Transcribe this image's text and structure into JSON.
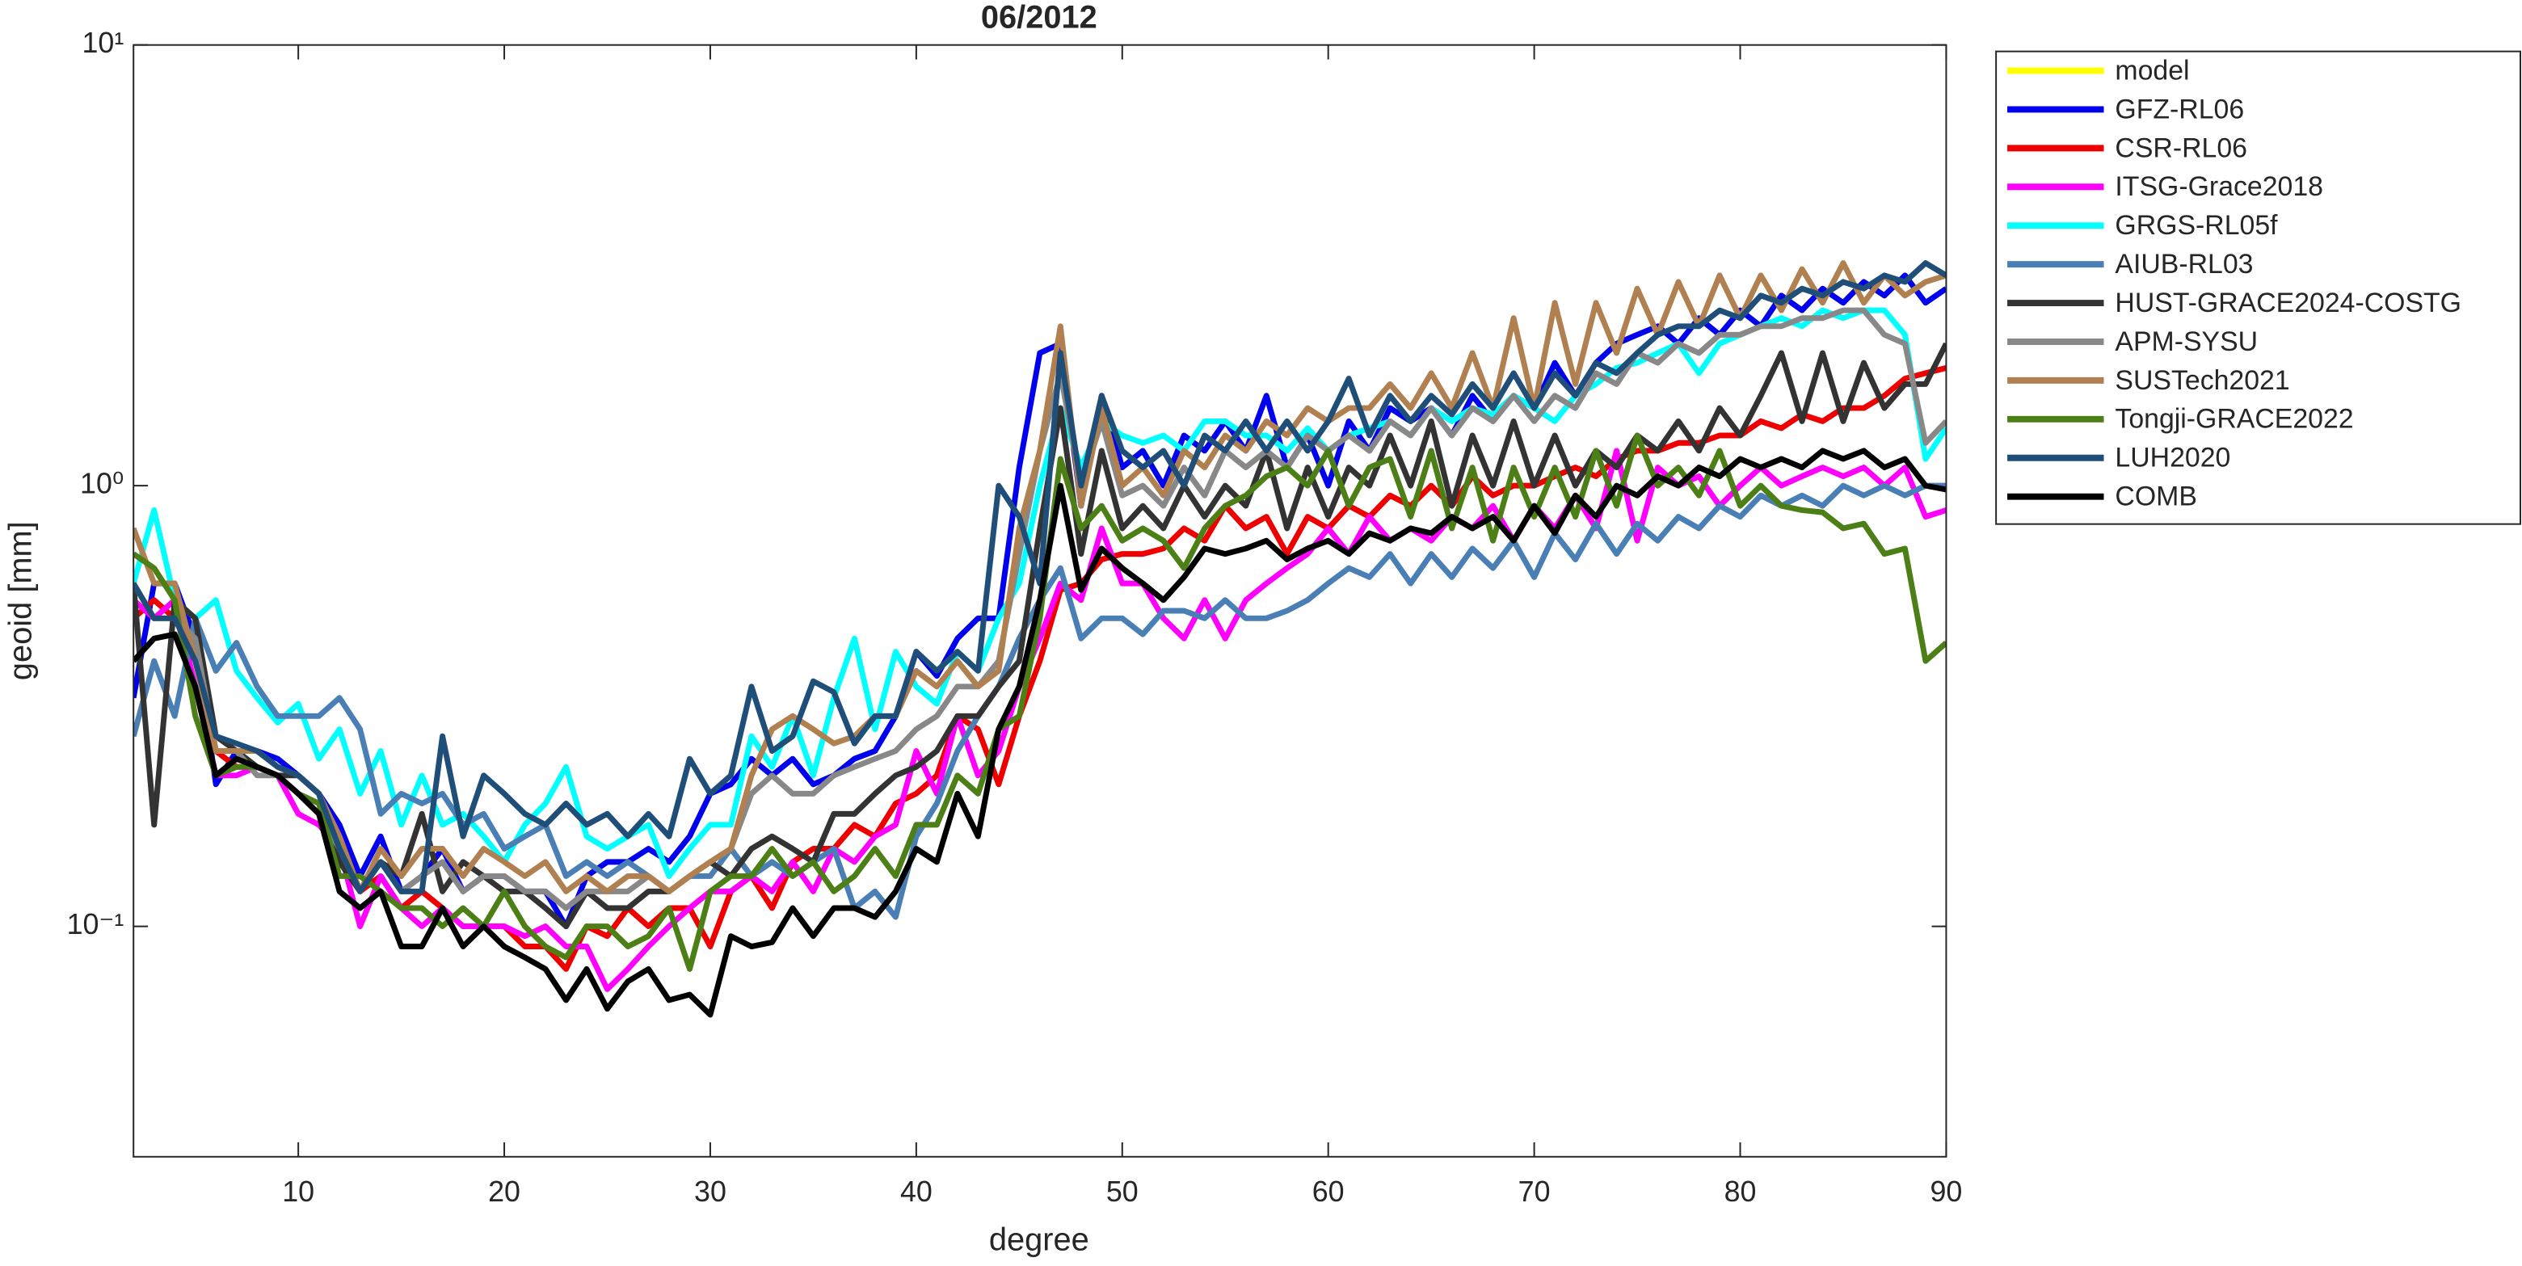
{
  "chart_data": {
    "type": "line",
    "title": "06/2012",
    "xlabel": "degree",
    "ylabel": "geoid [mm]",
    "xlim": [
      2,
      90
    ],
    "xticks": [
      10,
      20,
      30,
      40,
      50,
      60,
      70,
      80,
      90
    ],
    "ylim": [
      0.03,
      10
    ],
    "yscale": "log",
    "yticks": [
      {
        "value": 0.1,
        "label": "10⁻¹"
      },
      {
        "value": 1,
        "label": "10⁰"
      },
      {
        "value": 10,
        "label": "10¹"
      }
    ],
    "legend": "outside-right",
    "x": [
      2,
      3,
      4,
      5,
      6,
      7,
      8,
      9,
      10,
      11,
      12,
      13,
      14,
      15,
      16,
      17,
      18,
      19,
      20,
      21,
      22,
      23,
      24,
      25,
      26,
      27,
      28,
      29,
      30,
      31,
      32,
      33,
      34,
      35,
      36,
      37,
      38,
      39,
      40,
      41,
      42,
      43,
      44,
      45,
      46,
      47,
      48,
      49,
      50,
      51,
      52,
      53,
      54,
      55,
      56,
      57,
      58,
      59,
      60,
      61,
      62,
      63,
      64,
      65,
      66,
      67,
      68,
      69,
      70,
      71,
      72,
      73,
      74,
      75,
      76,
      77,
      78,
      79,
      80,
      81,
      82,
      83,
      84,
      85,
      86,
      87,
      88,
      89,
      90
    ],
    "series": [
      {
        "name": "model",
        "color": "#ffff00",
        "values": [
          null,
          null,
          null,
          null,
          null,
          null,
          null,
          null,
          null,
          null,
          null,
          null,
          null,
          null,
          null,
          null,
          null,
          null,
          null,
          null,
          null,
          null,
          null,
          null,
          null,
          null,
          null,
          null,
          null,
          null,
          null,
          null,
          null,
          null,
          null,
          null,
          null,
          null,
          null,
          null,
          null,
          null,
          null,
          null,
          null,
          null,
          null,
          null,
          null,
          null,
          null,
          null,
          null,
          null,
          null,
          null,
          null,
          null,
          null,
          null,
          null,
          null,
          null,
          null,
          null,
          null,
          null,
          null,
          null,
          null,
          null,
          null,
          null,
          null,
          null,
          null,
          null,
          null,
          null,
          null,
          null,
          null,
          null,
          null,
          null,
          null,
          null,
          null,
          null
        ]
      },
      {
        "name": "GFZ-RL06",
        "color": "#0000ee",
        "values": [
          0.33,
          0.6,
          0.6,
          0.45,
          0.21,
          0.25,
          0.25,
          0.24,
          0.22,
          0.2,
          0.17,
          0.13,
          0.16,
          0.12,
          0.13,
          0.15,
          0.12,
          0.13,
          0.13,
          0.12,
          0.12,
          0.1,
          0.13,
          0.14,
          0.14,
          0.15,
          0.14,
          0.16,
          0.2,
          0.21,
          0.24,
          0.22,
          0.24,
          0.21,
          0.22,
          0.24,
          0.25,
          0.3,
          0.42,
          0.37,
          0.45,
          0.5,
          0.5,
          1.1,
          2.0,
          2.1,
          0.9,
          1.6,
          1.1,
          1.2,
          1.0,
          1.3,
          1.2,
          1.4,
          1.2,
          1.6,
          1.1,
          1.3,
          1.0,
          1.4,
          1.2,
          1.5,
          1.4,
          1.5,
          1.3,
          1.6,
          1.4,
          1.6,
          1.5,
          1.9,
          1.6,
          1.9,
          2.1,
          2.2,
          2.3,
          2.1,
          2.4,
          2.2,
          2.5,
          2.3,
          2.7,
          2.5,
          2.8,
          2.6,
          2.9,
          2.7,
          3.0,
          2.6,
          2.8
        ]
      },
      {
        "name": "CSR-RL06",
        "color": "#ee0000",
        "values": [
          0.5,
          0.55,
          0.5,
          0.45,
          0.25,
          0.23,
          0.23,
          0.22,
          0.2,
          0.18,
          0.16,
          0.12,
          0.13,
          0.11,
          0.12,
          0.11,
          0.1,
          0.1,
          0.1,
          0.09,
          0.09,
          0.08,
          0.1,
          0.095,
          0.11,
          0.1,
          0.11,
          0.11,
          0.09,
          0.12,
          0.13,
          0.11,
          0.14,
          0.15,
          0.15,
          0.17,
          0.16,
          0.19,
          0.2,
          0.22,
          0.3,
          0.28,
          0.21,
          0.3,
          0.4,
          0.58,
          0.6,
          0.68,
          0.7,
          0.7,
          0.72,
          0.8,
          0.75,
          0.9,
          0.8,
          0.85,
          0.7,
          0.85,
          0.8,
          0.9,
          0.85,
          0.95,
          0.9,
          1.0,
          0.9,
          1.05,
          0.95,
          1.0,
          1.0,
          1.05,
          1.1,
          1.05,
          1.15,
          1.2,
          1.2,
          1.25,
          1.25,
          1.3,
          1.3,
          1.4,
          1.35,
          1.45,
          1.4,
          1.5,
          1.5,
          1.6,
          1.75,
          1.8,
          1.85
        ]
      },
      {
        "name": "ITSG-Grace2018",
        "color": "#ff00ff",
        "values": [
          0.55,
          0.5,
          0.55,
          0.35,
          0.22,
          0.22,
          0.23,
          0.22,
          0.18,
          0.17,
          0.15,
          0.1,
          0.13,
          0.11,
          0.1,
          0.11,
          0.1,
          0.1,
          0.1,
          0.095,
          0.1,
          0.09,
          0.09,
          0.072,
          0.08,
          0.09,
          0.1,
          0.11,
          0.12,
          0.12,
          0.13,
          0.12,
          0.14,
          0.12,
          0.15,
          0.14,
          0.16,
          0.17,
          0.25,
          0.2,
          0.3,
          0.22,
          0.25,
          0.35,
          0.45,
          0.6,
          0.55,
          0.8,
          0.6,
          0.6,
          0.5,
          0.45,
          0.55,
          0.45,
          0.55,
          0.6,
          0.65,
          0.7,
          0.8,
          0.7,
          0.85,
          0.75,
          0.8,
          0.75,
          0.85,
          0.8,
          0.9,
          0.75,
          0.9,
          0.8,
          0.95,
          0.8,
          1.2,
          0.75,
          1.1,
          1.0,
          1.05,
          0.9,
          1.0,
          1.1,
          1.0,
          1.05,
          1.1,
          1.05,
          1.1,
          1.0,
          1.1,
          0.85,
          0.88
        ]
      },
      {
        "name": "GRGS-RL05f",
        "color": "#00ffff",
        "values": [
          0.6,
          0.88,
          0.55,
          0.5,
          0.55,
          0.38,
          0.33,
          0.29,
          0.32,
          0.24,
          0.28,
          0.2,
          0.25,
          0.17,
          0.22,
          0.17,
          0.18,
          0.16,
          0.14,
          0.17,
          0.19,
          0.23,
          0.16,
          0.15,
          0.16,
          0.17,
          0.13,
          0.15,
          0.17,
          0.17,
          0.27,
          0.23,
          0.3,
          0.22,
          0.33,
          0.45,
          0.28,
          0.42,
          0.35,
          0.32,
          0.42,
          0.38,
          0.5,
          0.6,
          1.0,
          1.5,
          1.1,
          1.4,
          1.3,
          1.25,
          1.3,
          1.2,
          1.4,
          1.4,
          1.3,
          1.3,
          1.2,
          1.35,
          1.2,
          1.3,
          1.35,
          1.4,
          1.3,
          1.5,
          1.4,
          1.5,
          1.45,
          1.6,
          1.5,
          1.4,
          1.6,
          1.7,
          1.85,
          1.9,
          2.0,
          2.1,
          1.8,
          2.1,
          2.2,
          2.3,
          2.4,
          2.3,
          2.5,
          2.4,
          2.5,
          2.5,
          2.2,
          1.15,
          1.35
        ]
      },
      {
        "name": "AIUB-RL03",
        "color": "#4a7fb5",
        "values": [
          0.27,
          0.4,
          0.3,
          0.5,
          0.38,
          0.44,
          0.35,
          0.3,
          0.3,
          0.3,
          0.33,
          0.28,
          0.18,
          0.2,
          0.19,
          0.2,
          0.17,
          0.18,
          0.15,
          0.16,
          0.17,
          0.13,
          0.14,
          0.13,
          0.14,
          0.13,
          0.12,
          0.13,
          0.13,
          0.15,
          0.13,
          0.14,
          0.13,
          0.14,
          0.15,
          0.11,
          0.12,
          0.105,
          0.16,
          0.19,
          0.25,
          0.3,
          0.35,
          0.45,
          0.55,
          0.65,
          0.45,
          0.5,
          0.5,
          0.46,
          0.52,
          0.52,
          0.5,
          0.55,
          0.5,
          0.5,
          0.52,
          0.55,
          0.6,
          0.65,
          0.62,
          0.7,
          0.6,
          0.7,
          0.62,
          0.72,
          0.65,
          0.75,
          0.62,
          0.78,
          0.68,
          0.82,
          0.7,
          0.82,
          0.75,
          0.85,
          0.8,
          0.9,
          0.85,
          0.95,
          0.9,
          0.95,
          0.9,
          1.0,
          0.95,
          1.0,
          0.95,
          1.0,
          1.0
        ]
      },
      {
        "name": "HUST-GRACE2024-COSTG",
        "color": "#333333",
        "values": [
          0.6,
          0.17,
          0.55,
          0.5,
          0.27,
          0.25,
          0.23,
          0.22,
          0.22,
          0.2,
          0.14,
          0.12,
          0.14,
          0.13,
          0.18,
          0.12,
          0.14,
          0.13,
          0.12,
          0.12,
          0.11,
          0.1,
          0.12,
          0.11,
          0.11,
          0.12,
          0.12,
          0.13,
          0.14,
          0.13,
          0.15,
          0.16,
          0.15,
          0.14,
          0.18,
          0.18,
          0.2,
          0.22,
          0.23,
          0.25,
          0.3,
          0.3,
          0.35,
          0.4,
          0.8,
          1.5,
          0.7,
          1.2,
          0.8,
          0.9,
          0.8,
          1.0,
          0.85,
          1.0,
          0.9,
          1.2,
          0.8,
          1.1,
          0.85,
          1.1,
          1.0,
          1.3,
          1.0,
          1.4,
          0.9,
          1.3,
          1.0,
          1.4,
          1.0,
          1.3,
          1.0,
          1.2,
          1.1,
          1.3,
          1.2,
          1.4,
          1.2,
          1.5,
          1.3,
          1.6,
          2.0,
          1.4,
          2.0,
          1.4,
          1.9,
          1.5,
          1.7,
          1.7,
          2.1
        ]
      },
      {
        "name": "APM-SYSU",
        "color": "#888888",
        "values": [
          0.6,
          0.5,
          0.5,
          0.45,
          0.25,
          0.25,
          0.22,
          0.22,
          0.2,
          0.18,
          0.15,
          0.12,
          0.14,
          0.12,
          0.13,
          0.14,
          0.12,
          0.13,
          0.13,
          0.12,
          0.12,
          0.11,
          0.12,
          0.12,
          0.12,
          0.13,
          0.12,
          0.13,
          0.14,
          0.15,
          0.2,
          0.22,
          0.2,
          0.2,
          0.22,
          0.23,
          0.24,
          0.25,
          0.28,
          0.3,
          0.35,
          0.35,
          0.4,
          0.7,
          1.2,
          1.8,
          1.0,
          1.4,
          0.95,
          1.0,
          0.9,
          1.1,
          0.95,
          1.2,
          1.1,
          1.2,
          1.1,
          1.3,
          1.2,
          1.3,
          1.2,
          1.4,
          1.3,
          1.5,
          1.3,
          1.5,
          1.4,
          1.6,
          1.4,
          1.6,
          1.5,
          1.8,
          1.7,
          2.0,
          1.9,
          2.1,
          2.0,
          2.2,
          2.2,
          2.3,
          2.3,
          2.4,
          2.4,
          2.5,
          2.5,
          2.2,
          2.1,
          1.25,
          1.4
        ]
      },
      {
        "name": "SUSTech2021",
        "color": "#b08050",
        "values": [
          0.8,
          0.6,
          0.6,
          0.4,
          0.25,
          0.25,
          0.25,
          0.23,
          0.22,
          0.2,
          0.16,
          0.12,
          0.15,
          0.13,
          0.15,
          0.15,
          0.13,
          0.15,
          0.14,
          0.13,
          0.14,
          0.12,
          0.13,
          0.12,
          0.13,
          0.13,
          0.12,
          0.13,
          0.14,
          0.15,
          0.22,
          0.28,
          0.3,
          0.28,
          0.26,
          0.27,
          0.3,
          0.3,
          0.38,
          0.35,
          0.4,
          0.35,
          0.38,
          0.8,
          1.2,
          2.3,
          0.9,
          1.5,
          1.0,
          1.1,
          0.95,
          1.2,
          1.1,
          1.3,
          1.2,
          1.4,
          1.3,
          1.5,
          1.4,
          1.5,
          1.5,
          1.7,
          1.5,
          1.8,
          1.5,
          2.0,
          1.5,
          2.4,
          1.5,
          2.6,
          1.7,
          2.6,
          2.0,
          2.8,
          2.2,
          2.9,
          2.3,
          3.0,
          2.4,
          3.0,
          2.5,
          3.1,
          2.6,
          3.2,
          2.6,
          3.0,
          2.7,
          2.9,
          3.0
        ]
      },
      {
        "name": "Tongji-GRACE2022",
        "color": "#4d7f17",
        "values": [
          0.7,
          0.65,
          0.55,
          0.3,
          0.22,
          0.23,
          0.23,
          0.22,
          0.2,
          0.19,
          0.13,
          0.13,
          0.12,
          0.11,
          0.11,
          0.1,
          0.11,
          0.1,
          0.12,
          0.1,
          0.09,
          0.085,
          0.1,
          0.1,
          0.09,
          0.095,
          0.11,
          0.08,
          0.12,
          0.13,
          0.13,
          0.15,
          0.13,
          0.14,
          0.12,
          0.13,
          0.15,
          0.13,
          0.17,
          0.17,
          0.22,
          0.2,
          0.28,
          0.3,
          0.5,
          1.15,
          0.8,
          0.9,
          0.75,
          0.8,
          0.75,
          0.65,
          0.8,
          0.9,
          0.95,
          1.05,
          1.1,
          1.0,
          1.2,
          0.9,
          1.1,
          1.15,
          0.85,
          1.2,
          0.8,
          1.1,
          0.75,
          1.1,
          0.85,
          1.1,
          0.85,
          1.2,
          0.9,
          1.3,
          1.0,
          1.1,
          0.95,
          1.2,
          0.9,
          1.0,
          0.9,
          0.88,
          0.87,
          0.8,
          0.82,
          0.7,
          0.72,
          0.4,
          0.44
        ]
      },
      {
        "name": "LUH2020",
        "color": "#1f4e79",
        "values": [
          0.6,
          0.5,
          0.5,
          0.4,
          0.27,
          0.26,
          0.25,
          0.23,
          0.22,
          0.2,
          0.15,
          0.12,
          0.14,
          0.12,
          0.12,
          0.27,
          0.16,
          0.22,
          0.2,
          0.18,
          0.17,
          0.19,
          0.17,
          0.18,
          0.16,
          0.18,
          0.16,
          0.24,
          0.2,
          0.22,
          0.35,
          0.25,
          0.27,
          0.36,
          0.34,
          0.26,
          0.3,
          0.3,
          0.42,
          0.38,
          0.42,
          0.38,
          1.0,
          0.85,
          0.6,
          2.0,
          1.0,
          1.6,
          1.2,
          1.1,
          1.2,
          1.0,
          1.3,
          1.2,
          1.4,
          1.2,
          1.4,
          1.2,
          1.4,
          1.75,
          1.3,
          1.6,
          1.4,
          1.6,
          1.45,
          1.7,
          1.5,
          1.8,
          1.5,
          1.8,
          1.6,
          1.9,
          1.8,
          2.0,
          2.2,
          2.3,
          2.3,
          2.5,
          2.4,
          2.7,
          2.6,
          2.8,
          2.7,
          2.9,
          2.8,
          3.0,
          2.9,
          3.2,
          3.0
        ]
      },
      {
        "name": "COMB",
        "color": "#000000",
        "values": [
          0.4,
          0.45,
          0.46,
          0.35,
          0.22,
          0.24,
          0.23,
          0.22,
          0.2,
          0.18,
          0.12,
          0.11,
          0.12,
          0.09,
          0.09,
          0.11,
          0.09,
          0.1,
          0.09,
          0.085,
          0.08,
          0.068,
          0.08,
          0.065,
          0.075,
          0.08,
          0.068,
          0.07,
          0.063,
          0.095,
          0.09,
          0.092,
          0.11,
          0.095,
          0.11,
          0.11,
          0.105,
          0.12,
          0.15,
          0.14,
          0.2,
          0.16,
          0.28,
          0.35,
          0.55,
          1.0,
          0.58,
          0.72,
          0.65,
          0.6,
          0.55,
          0.62,
          0.72,
          0.7,
          0.72,
          0.75,
          0.68,
          0.72,
          0.75,
          0.7,
          0.78,
          0.75,
          0.8,
          0.78,
          0.85,
          0.8,
          0.85,
          0.75,
          0.9,
          0.78,
          0.95,
          0.85,
          1.0,
          0.95,
          1.05,
          1.0,
          1.1,
          1.05,
          1.15,
          1.1,
          1.15,
          1.1,
          1.2,
          1.15,
          1.2,
          1.1,
          1.15,
          1.0,
          0.98
        ]
      }
    ]
  }
}
